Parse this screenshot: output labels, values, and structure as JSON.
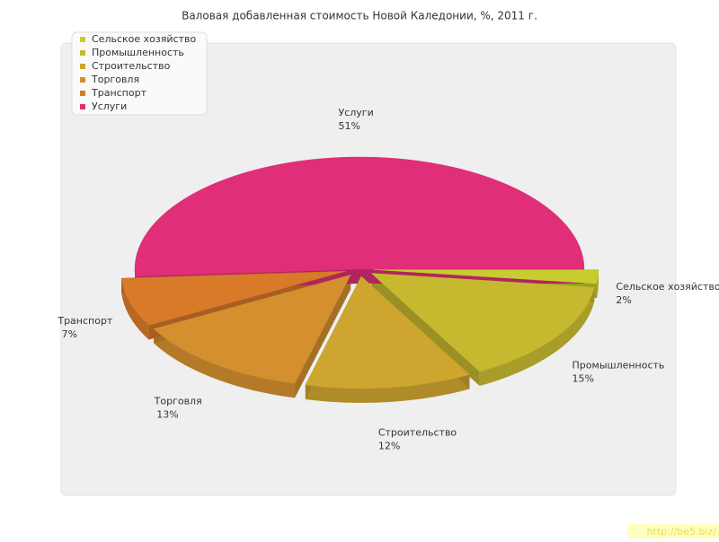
{
  "chart_data": {
    "type": "pie3d",
    "title": "Валовая добавленная стоимость Новой Каледонии, %, 2011 г.",
    "categories": [
      "Сельское хозяйство",
      "Промышленность",
      "Строительство",
      "Торговля",
      "Транспорт",
      "Услуги"
    ],
    "values": [
      2,
      15,
      12,
      13,
      7,
      51
    ],
    "value_labels": [
      "2%",
      "15%",
      "12%",
      "13%",
      "7%",
      "51%"
    ],
    "colors": [
      "#c9cc2e",
      "#c6b930",
      "#cda52f",
      "#d48f2f",
      "#d9792a",
      "#e02f78"
    ],
    "legend": "top-left"
  },
  "watermark": "http://be5.biz/"
}
